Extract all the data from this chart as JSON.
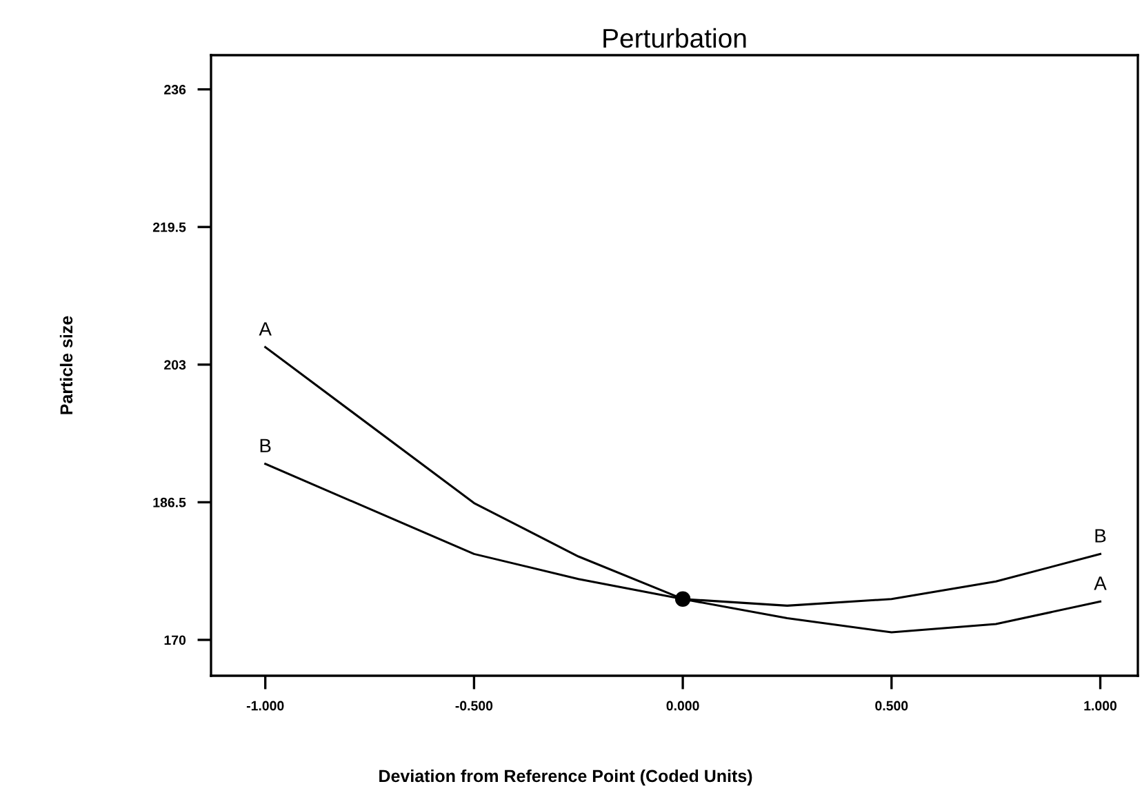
{
  "chart_data": {
    "type": "line",
    "title": "Perturbation",
    "xlabel": "Deviation from Reference Point (Coded Units)",
    "ylabel": "Particle size",
    "x": [
      -1,
      -0.5,
      -0.25,
      0,
      0.25,
      0.5,
      0.75,
      1
    ],
    "series": [
      {
        "name": "A",
        "color": "#000000",
        "values": [
          205.1,
          186.4,
          180.0,
          174.9,
          172.6,
          170.9,
          171.9,
          174.6
        ]
      },
      {
        "name": "B",
        "color": "#000000",
        "values": [
          191.1,
          180.3,
          177.3,
          174.9,
          174.1,
          174.9,
          177.0,
          180.3
        ]
      },
      {
        "type": "scatter",
        "x": [
          0
        ],
        "color": "#000000",
        "marker": "circle",
        "values": [
          174.9
        ]
      }
    ],
    "xlim": [
      -1.13,
      1.09
    ],
    "ylim": [
      165.7,
      240.1
    ],
    "xticks": [
      {
        "value": -1,
        "label": "-1.000"
      },
      {
        "value": -0.5,
        "label": "-0.500"
      },
      {
        "value": 0,
        "label": "0.000"
      },
      {
        "value": 0.5,
        "label": "0.500"
      },
      {
        "value": 1,
        "label": "1.000"
      }
    ],
    "yticks": [
      170,
      186.5,
      203,
      219.5,
      236
    ],
    "grid": false,
    "legend": false,
    "line_style": "solid"
  }
}
